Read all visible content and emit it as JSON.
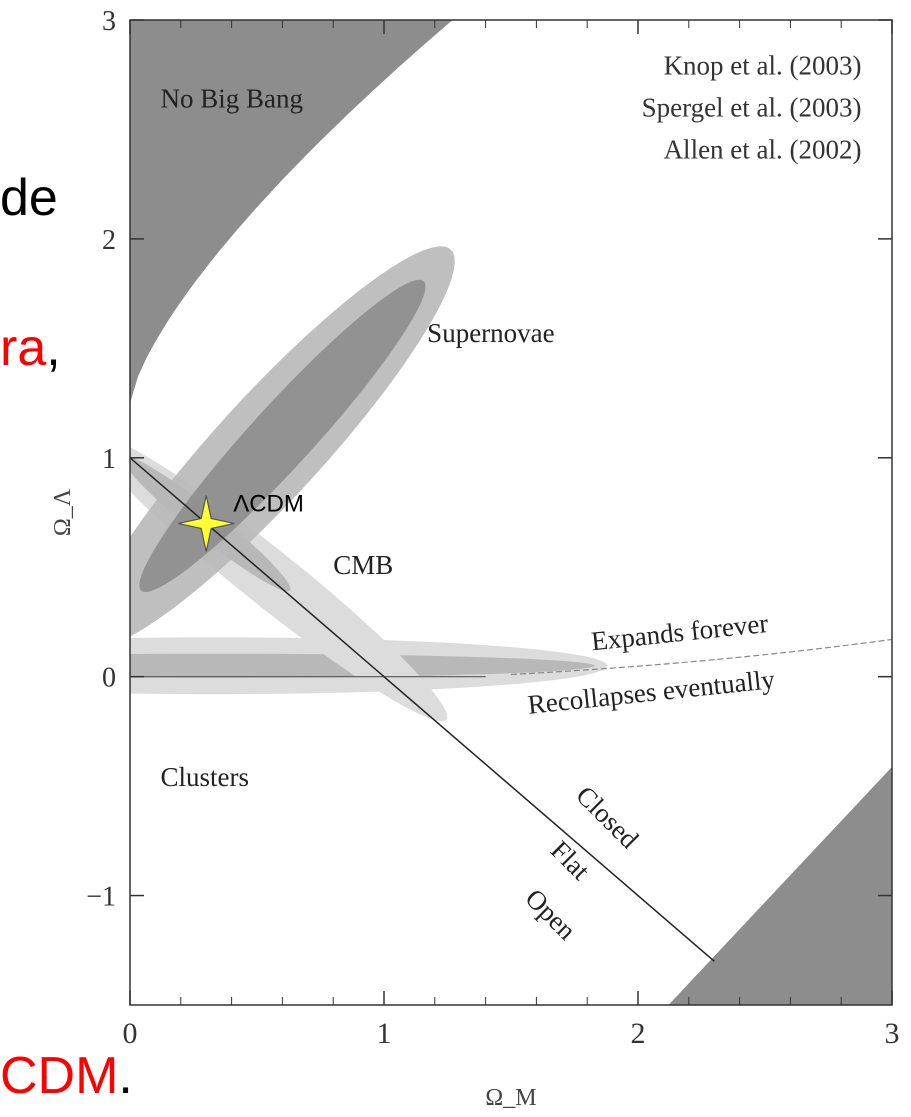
{
  "slide": {
    "fragment_1": "de",
    "fragment_2": "ra",
    "fragment_2_comma": ",",
    "fragment_3": "CDM",
    "fragment_3_period": ".",
    "text_color": "#000000",
    "highlight_color": "#ff0000"
  },
  "chart_data": {
    "type": "scatter",
    "title": "",
    "xlabel": "Ω_M",
    "ylabel": "Ω_Λ",
    "xlim": [
      0,
      3
    ],
    "ylim": [
      -1.5,
      3
    ],
    "x_ticks": [
      0,
      1,
      2,
      3
    ],
    "y_ticks": [
      -1,
      0,
      1,
      2,
      3
    ],
    "x_tick_labels": [
      "0",
      "1",
      "2",
      "3"
    ],
    "y_tick_labels": [
      "−1",
      "0",
      "1",
      "2",
      "3"
    ],
    "grid": false,
    "references": [
      "Knop et al. (2003)",
      "Spergel et al. (2003)",
      "Allen et al. (2002)"
    ],
    "regions": {
      "no_big_bang": "No Big Bang",
      "supernovae": "Supernovae",
      "cmb": "CMB",
      "clusters": "Clusters"
    },
    "lines": {
      "expands_forever": "Expands forever",
      "recollapses": "Recollapses eventually",
      "closed": "Closed",
      "flat": "Flat",
      "open": "Open"
    },
    "flat_line": {
      "x": [
        0,
        2.3
      ],
      "y": [
        1,
        -1.3
      ]
    },
    "zero_line": {
      "x": [
        0,
        1.4
      ],
      "y": [
        0,
        0
      ]
    },
    "points": [
      {
        "x": 0.3,
        "y": 0.7,
        "label": "ΛCDM"
      }
    ],
    "colors": {
      "dark_region": "#8d8d8d",
      "mid_region": "#b8b8b8",
      "light_region": "#dcdcdc",
      "star": "#ffff33"
    }
  }
}
